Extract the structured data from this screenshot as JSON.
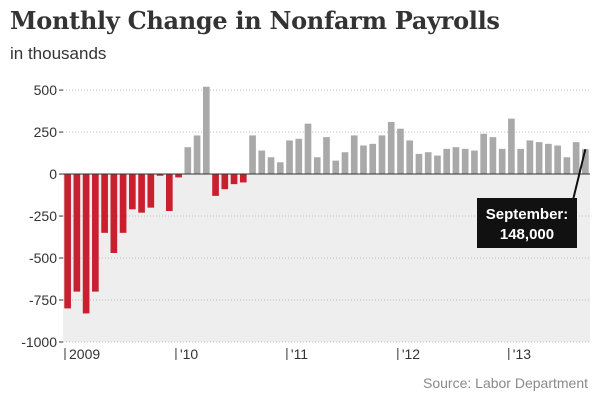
{
  "title": "Monthly Change in Nonfarm Payrolls",
  "subtitle": "in thousands",
  "source": "Source: Labor Department",
  "callout": {
    "line1": "September:",
    "line2": "148,000"
  },
  "colors": {
    "negative": "#c8202f",
    "positive": "#a9a9a9",
    "shade": "#eeeeee",
    "callout": "#111111"
  },
  "chart_data": {
    "type": "bar",
    "ylim": [
      -1000,
      560
    ],
    "yticks": [
      500,
      250,
      0,
      -250,
      -500,
      -750,
      -1000
    ],
    "ytick_labels": [
      "500",
      "250",
      "0",
      "-250",
      "-500",
      "-750",
      "-1000"
    ],
    "xtick_labels": [
      {
        "index": 0,
        "label": "2009"
      },
      {
        "index": 12,
        "label": "'10"
      },
      {
        "index": 24,
        "label": "'11"
      },
      {
        "index": 36,
        "label": "'12"
      },
      {
        "index": 48,
        "label": "'13"
      }
    ],
    "months": [
      "2009-01",
      "2009-02",
      "2009-03",
      "2009-04",
      "2009-05",
      "2009-06",
      "2009-07",
      "2009-08",
      "2009-09",
      "2009-10",
      "2009-11",
      "2009-12",
      "2010-01",
      "2010-02",
      "2010-03",
      "2010-04",
      "2010-05",
      "2010-06",
      "2010-07",
      "2010-08",
      "2010-09",
      "2010-10",
      "2010-11",
      "2010-12",
      "2011-01",
      "2011-02",
      "2011-03",
      "2011-04",
      "2011-05",
      "2011-06",
      "2011-07",
      "2011-08",
      "2011-09",
      "2011-10",
      "2011-11",
      "2011-12",
      "2012-01",
      "2012-02",
      "2012-03",
      "2012-04",
      "2012-05",
      "2012-06",
      "2012-07",
      "2012-08",
      "2012-09",
      "2012-10",
      "2012-11",
      "2012-12",
      "2013-01",
      "2013-02",
      "2013-03",
      "2013-04",
      "2013-05",
      "2013-06",
      "2013-07",
      "2013-08",
      "2013-09"
    ],
    "values": [
      -800,
      -700,
      -830,
      -700,
      -350,
      -470,
      -350,
      -210,
      -230,
      -200,
      -10,
      -220,
      -20,
      160,
      230,
      520,
      -130,
      -90,
      -60,
      -50,
      230,
      140,
      100,
      70,
      200,
      210,
      300,
      100,
      220,
      80,
      130,
      230,
      170,
      180,
      230,
      310,
      270,
      200,
      120,
      130,
      110,
      150,
      160,
      150,
      140,
      240,
      220,
      150,
      330,
      150,
      200,
      190,
      180,
      170,
      100,
      190,
      148
    ]
  }
}
